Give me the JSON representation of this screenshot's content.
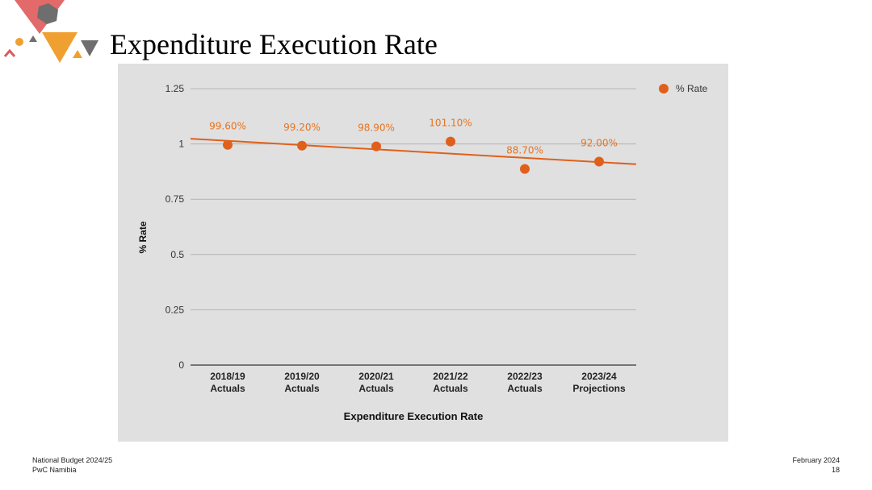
{
  "page": {
    "title": "Expenditure Execution Rate",
    "footer": {
      "left_line1": "National Budget 2024/25",
      "left_line2": "PwC Namibia",
      "right_line1": "February 2024",
      "right_line2": "18"
    },
    "colors": {
      "series": "#e0601b",
      "label": "#e8731f",
      "panel": "#e0e0e0",
      "logo_red": "#e05a5a",
      "logo_orange": "#f0a030",
      "logo_grey": "#6e6e6e"
    }
  },
  "chart_data": {
    "type": "scatter",
    "title": "",
    "xlabel": "Expenditure Execution Rate",
    "ylabel": "% Rate",
    "categories": [
      [
        "2018/19",
        "Actuals"
      ],
      [
        "2019/20",
        "Actuals"
      ],
      [
        "2020/21",
        "Actuals"
      ],
      [
        "2021/22",
        "Actuals"
      ],
      [
        "2022/23",
        "Actuals"
      ],
      [
        "2023/24",
        "Projections"
      ]
    ],
    "series": [
      {
        "name": "% Rate",
        "values": [
          0.996,
          0.992,
          0.989,
          1.011,
          0.887,
          0.92
        ],
        "data_labels": [
          "99.60%",
          "99.20%",
          "98.90%",
          "101.10%",
          "88.70%",
          "92.00%"
        ]
      }
    ],
    "trendline": {
      "type": "linear",
      "series": "% Rate"
    },
    "ylim": [
      0,
      1.25
    ],
    "yticks": [
      0,
      0.25,
      0.5,
      0.75,
      1,
      1.25
    ],
    "ytick_labels": [
      "0",
      "0.25",
      "0.5",
      "0.75",
      "1",
      "1.25"
    ],
    "grid": true,
    "legend": "top-right"
  }
}
